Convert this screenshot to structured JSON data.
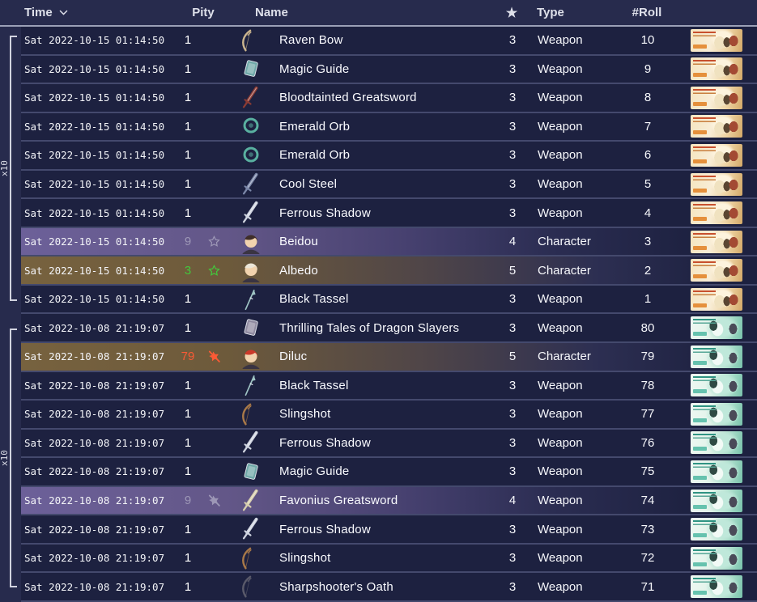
{
  "header": {
    "time": "Time",
    "pity": "Pity",
    "name": "Name",
    "star_icon": "★",
    "type": "Type",
    "roll": "#Roll"
  },
  "groups": [
    {
      "label": "x10"
    },
    {
      "label": "x10"
    }
  ],
  "colors": {
    "background": "#272b4d",
    "row": "#1d2140",
    "separator": "#44496d",
    "tier4_left": "#6c6099",
    "tier5_left": "#77623f",
    "pity_win": "#43c83c",
    "pity_loss": "#fb5a35",
    "pity_dim": "#9d97b6",
    "banner_gold": "#eed4a4",
    "banner_teal": "#a8dcc9"
  },
  "table": {
    "rows": [
      {
        "time": "Sat 2022-10-15 01:14:50",
        "pity": "1",
        "pity_icon": "",
        "pity_color": "",
        "icon": "bow",
        "icon_color": "#cbb58e",
        "name": "Raven Bow",
        "rarity": "3",
        "type": "Weapon",
        "roll": "10",
        "banner": "gold"
      },
      {
        "time": "Sat 2022-10-15 01:14:50",
        "pity": "1",
        "pity_icon": "",
        "pity_color": "",
        "icon": "book",
        "icon_color": "#6fa8a8",
        "name": "Magic Guide",
        "rarity": "3",
        "type": "Weapon",
        "roll": "9",
        "banner": "gold"
      },
      {
        "time": "Sat 2022-10-15 01:14:50",
        "pity": "1",
        "pity_icon": "",
        "pity_color": "",
        "icon": "sword",
        "icon_color": "#8a3b34",
        "name": "Bloodtainted Greatsword",
        "rarity": "3",
        "type": "Weapon",
        "roll": "8",
        "banner": "gold"
      },
      {
        "time": "Sat 2022-10-15 01:14:50",
        "pity": "1",
        "pity_icon": "",
        "pity_color": "",
        "icon": "orb",
        "icon_color": "#59b0a0",
        "name": "Emerald Orb",
        "rarity": "3",
        "type": "Weapon",
        "roll": "7",
        "banner": "gold"
      },
      {
        "time": "Sat 2022-10-15 01:14:50",
        "pity": "1",
        "pity_icon": "",
        "pity_color": "",
        "icon": "orb",
        "icon_color": "#59b0a0",
        "name": "Emerald Orb",
        "rarity": "3",
        "type": "Weapon",
        "roll": "6",
        "banner": "gold"
      },
      {
        "time": "Sat 2022-10-15 01:14:50",
        "pity": "1",
        "pity_icon": "",
        "pity_color": "",
        "icon": "sword",
        "icon_color": "#7b87a8",
        "name": "Cool Steel",
        "rarity": "3",
        "type": "Weapon",
        "roll": "5",
        "banner": "gold"
      },
      {
        "time": "Sat 2022-10-15 01:14:50",
        "pity": "1",
        "pity_icon": "",
        "pity_color": "",
        "icon": "sword",
        "icon_color": "#cfd4e0",
        "name": "Ferrous Shadow",
        "rarity": "3",
        "type": "Weapon",
        "roll": "4",
        "banner": "gold"
      },
      {
        "time": "Sat 2022-10-15 01:14:50",
        "pity": "9",
        "pity_icon": "star",
        "pity_color": "#9d97b6",
        "icon": "portrait",
        "icon_color": "#3f2e2a",
        "name": "Beidou",
        "rarity": "4",
        "type": "Character",
        "roll": "3",
        "banner": "gold"
      },
      {
        "time": "Sat 2022-10-15 01:14:50",
        "pity": "3",
        "pity_icon": "star",
        "pity_color": "#43c83c",
        "icon": "portrait",
        "icon_color": "#ece6d8",
        "name": "Albedo",
        "rarity": "5",
        "type": "Character",
        "roll": "2",
        "banner": "gold"
      },
      {
        "time": "Sat 2022-10-15 01:14:50",
        "pity": "1",
        "pity_icon": "",
        "pity_color": "",
        "icon": "polearm",
        "icon_color": "#9fc4c4",
        "name": "Black Tassel",
        "rarity": "3",
        "type": "Weapon",
        "roll": "1",
        "banner": "gold"
      },
      {
        "time": "Sat 2022-10-08 21:19:07",
        "pity": "1",
        "pity_icon": "",
        "pity_color": "",
        "icon": "book",
        "icon_color": "#8f8aa0",
        "name": "Thrilling Tales of Dragon Slayers",
        "rarity": "3",
        "type": "Weapon",
        "roll": "80",
        "banner": "teal"
      },
      {
        "time": "Sat 2022-10-08 21:19:07",
        "pity": "79",
        "pity_icon": "star-off",
        "pity_color": "#fb5a35",
        "icon": "portrait",
        "icon_color": "#cc3a2a",
        "name": "Diluc",
        "rarity": "5",
        "type": "Character",
        "roll": "79",
        "banner": "teal"
      },
      {
        "time": "Sat 2022-10-08 21:19:07",
        "pity": "1",
        "pity_icon": "",
        "pity_color": "",
        "icon": "polearm",
        "icon_color": "#9fc4c4",
        "name": "Black Tassel",
        "rarity": "3",
        "type": "Weapon",
        "roll": "78",
        "banner": "teal"
      },
      {
        "time": "Sat 2022-10-08 21:19:07",
        "pity": "1",
        "pity_icon": "",
        "pity_color": "",
        "icon": "bow",
        "icon_color": "#a87848",
        "name": "Slingshot",
        "rarity": "3",
        "type": "Weapon",
        "roll": "77",
        "banner": "teal"
      },
      {
        "time": "Sat 2022-10-08 21:19:07",
        "pity": "1",
        "pity_icon": "",
        "pity_color": "",
        "icon": "sword",
        "icon_color": "#cfd4e0",
        "name": "Ferrous Shadow",
        "rarity": "3",
        "type": "Weapon",
        "roll": "76",
        "banner": "teal"
      },
      {
        "time": "Sat 2022-10-08 21:19:07",
        "pity": "1",
        "pity_icon": "",
        "pity_color": "",
        "icon": "book",
        "icon_color": "#6fa8a8",
        "name": "Magic Guide",
        "rarity": "3",
        "type": "Weapon",
        "roll": "75",
        "banner": "teal"
      },
      {
        "time": "Sat 2022-10-08 21:19:07",
        "pity": "9",
        "pity_icon": "star-off",
        "pity_color": "#9d97b6",
        "icon": "sword",
        "icon_color": "#d8cfae",
        "name": "Favonius Greatsword",
        "rarity": "4",
        "type": "Weapon",
        "roll": "74",
        "banner": "teal"
      },
      {
        "time": "Sat 2022-10-08 21:19:07",
        "pity": "1",
        "pity_icon": "",
        "pity_color": "",
        "icon": "sword",
        "icon_color": "#cfd4e0",
        "name": "Ferrous Shadow",
        "rarity": "3",
        "type": "Weapon",
        "roll": "73",
        "banner": "teal"
      },
      {
        "time": "Sat 2022-10-08 21:19:07",
        "pity": "1",
        "pity_icon": "",
        "pity_color": "",
        "icon": "bow",
        "icon_color": "#a87848",
        "name": "Slingshot",
        "rarity": "3",
        "type": "Weapon",
        "roll": "72",
        "banner": "teal"
      },
      {
        "time": "Sat 2022-10-08 21:19:07",
        "pity": "1",
        "pity_icon": "",
        "pity_color": "",
        "icon": "bow",
        "icon_color": "#5a5a6a",
        "name": "Sharpshooter's Oath",
        "rarity": "3",
        "type": "Weapon",
        "roll": "71",
        "banner": "teal"
      }
    ]
  }
}
